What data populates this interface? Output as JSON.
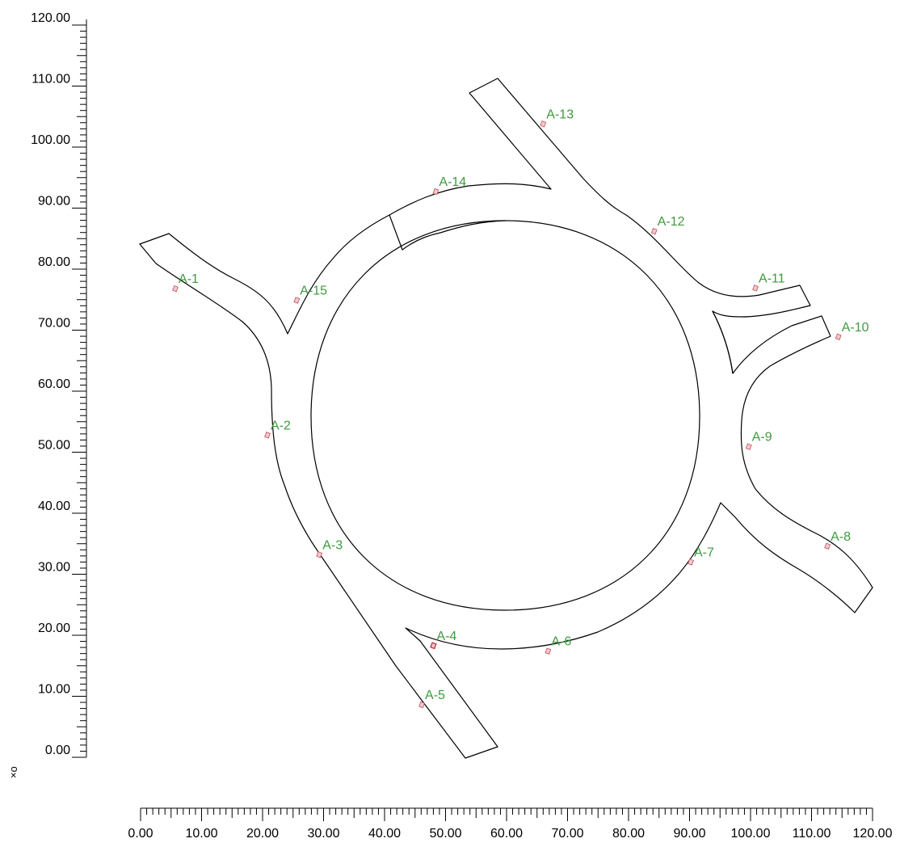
{
  "axes": {
    "x_tick_labels": [
      "0.00",
      "10.00",
      "20.00",
      "30.00",
      "40.00",
      "50.00",
      "60.00",
      "70.00",
      "80.00",
      "90.00",
      "100.00",
      "110.00",
      "120.00"
    ],
    "y_tick_labels": [
      "0.00",
      "10.00",
      "20.00",
      "30.00",
      "40.00",
      "50.00",
      "60.00",
      "70.00",
      "80.00",
      "90.00",
      "100.00",
      "110.00",
      "120.00"
    ],
    "origin_symbol": "×o"
  },
  "points": [
    {
      "id": "A-1",
      "label": "A-1",
      "x": 5.7,
      "y": 76.8
    },
    {
      "id": "A-2",
      "label": "A-2",
      "x": 20.8,
      "y": 52.8
    },
    {
      "id": "A-3",
      "label": "A-3",
      "x": 29.3,
      "y": 33.2
    },
    {
      "id": "A-4",
      "label": "A-4",
      "x": 48.0,
      "y": 18.3
    },
    {
      "id": "A-5",
      "label": "A-5",
      "x": 46.1,
      "y": 8.6
    },
    {
      "id": "A-6",
      "label": "A-6",
      "x": 66.8,
      "y": 17.4
    },
    {
      "id": "A-7",
      "label": "A-7",
      "x": 90.2,
      "y": 32.0
    },
    {
      "id": "A-8",
      "label": "A-8",
      "x": 112.6,
      "y": 34.6
    },
    {
      "id": "A-9",
      "label": "A-9",
      "x": 99.7,
      "y": 50.9
    },
    {
      "id": "A-10",
      "label": "A-10",
      "x": 114.4,
      "y": 68.9
    },
    {
      "id": "A-11",
      "label": "A-11",
      "x": 100.8,
      "y": 76.9
    },
    {
      "id": "A-12",
      "label": "A-12",
      "x": 84.2,
      "y": 86.2
    },
    {
      "id": "A-13",
      "label": "A-13",
      "x": 66.0,
      "y": 103.8
    },
    {
      "id": "A-14",
      "label": "A-14",
      "x": 48.4,
      "y": 92.7
    },
    {
      "id": "A-15",
      "label": "A-15",
      "x": 25.6,
      "y": 74.9
    }
  ],
  "colors": {
    "label": "#3e9a3e",
    "marker_fill": "#f2c9cc",
    "marker_stroke": "#c0505a",
    "road": "#000000"
  }
}
